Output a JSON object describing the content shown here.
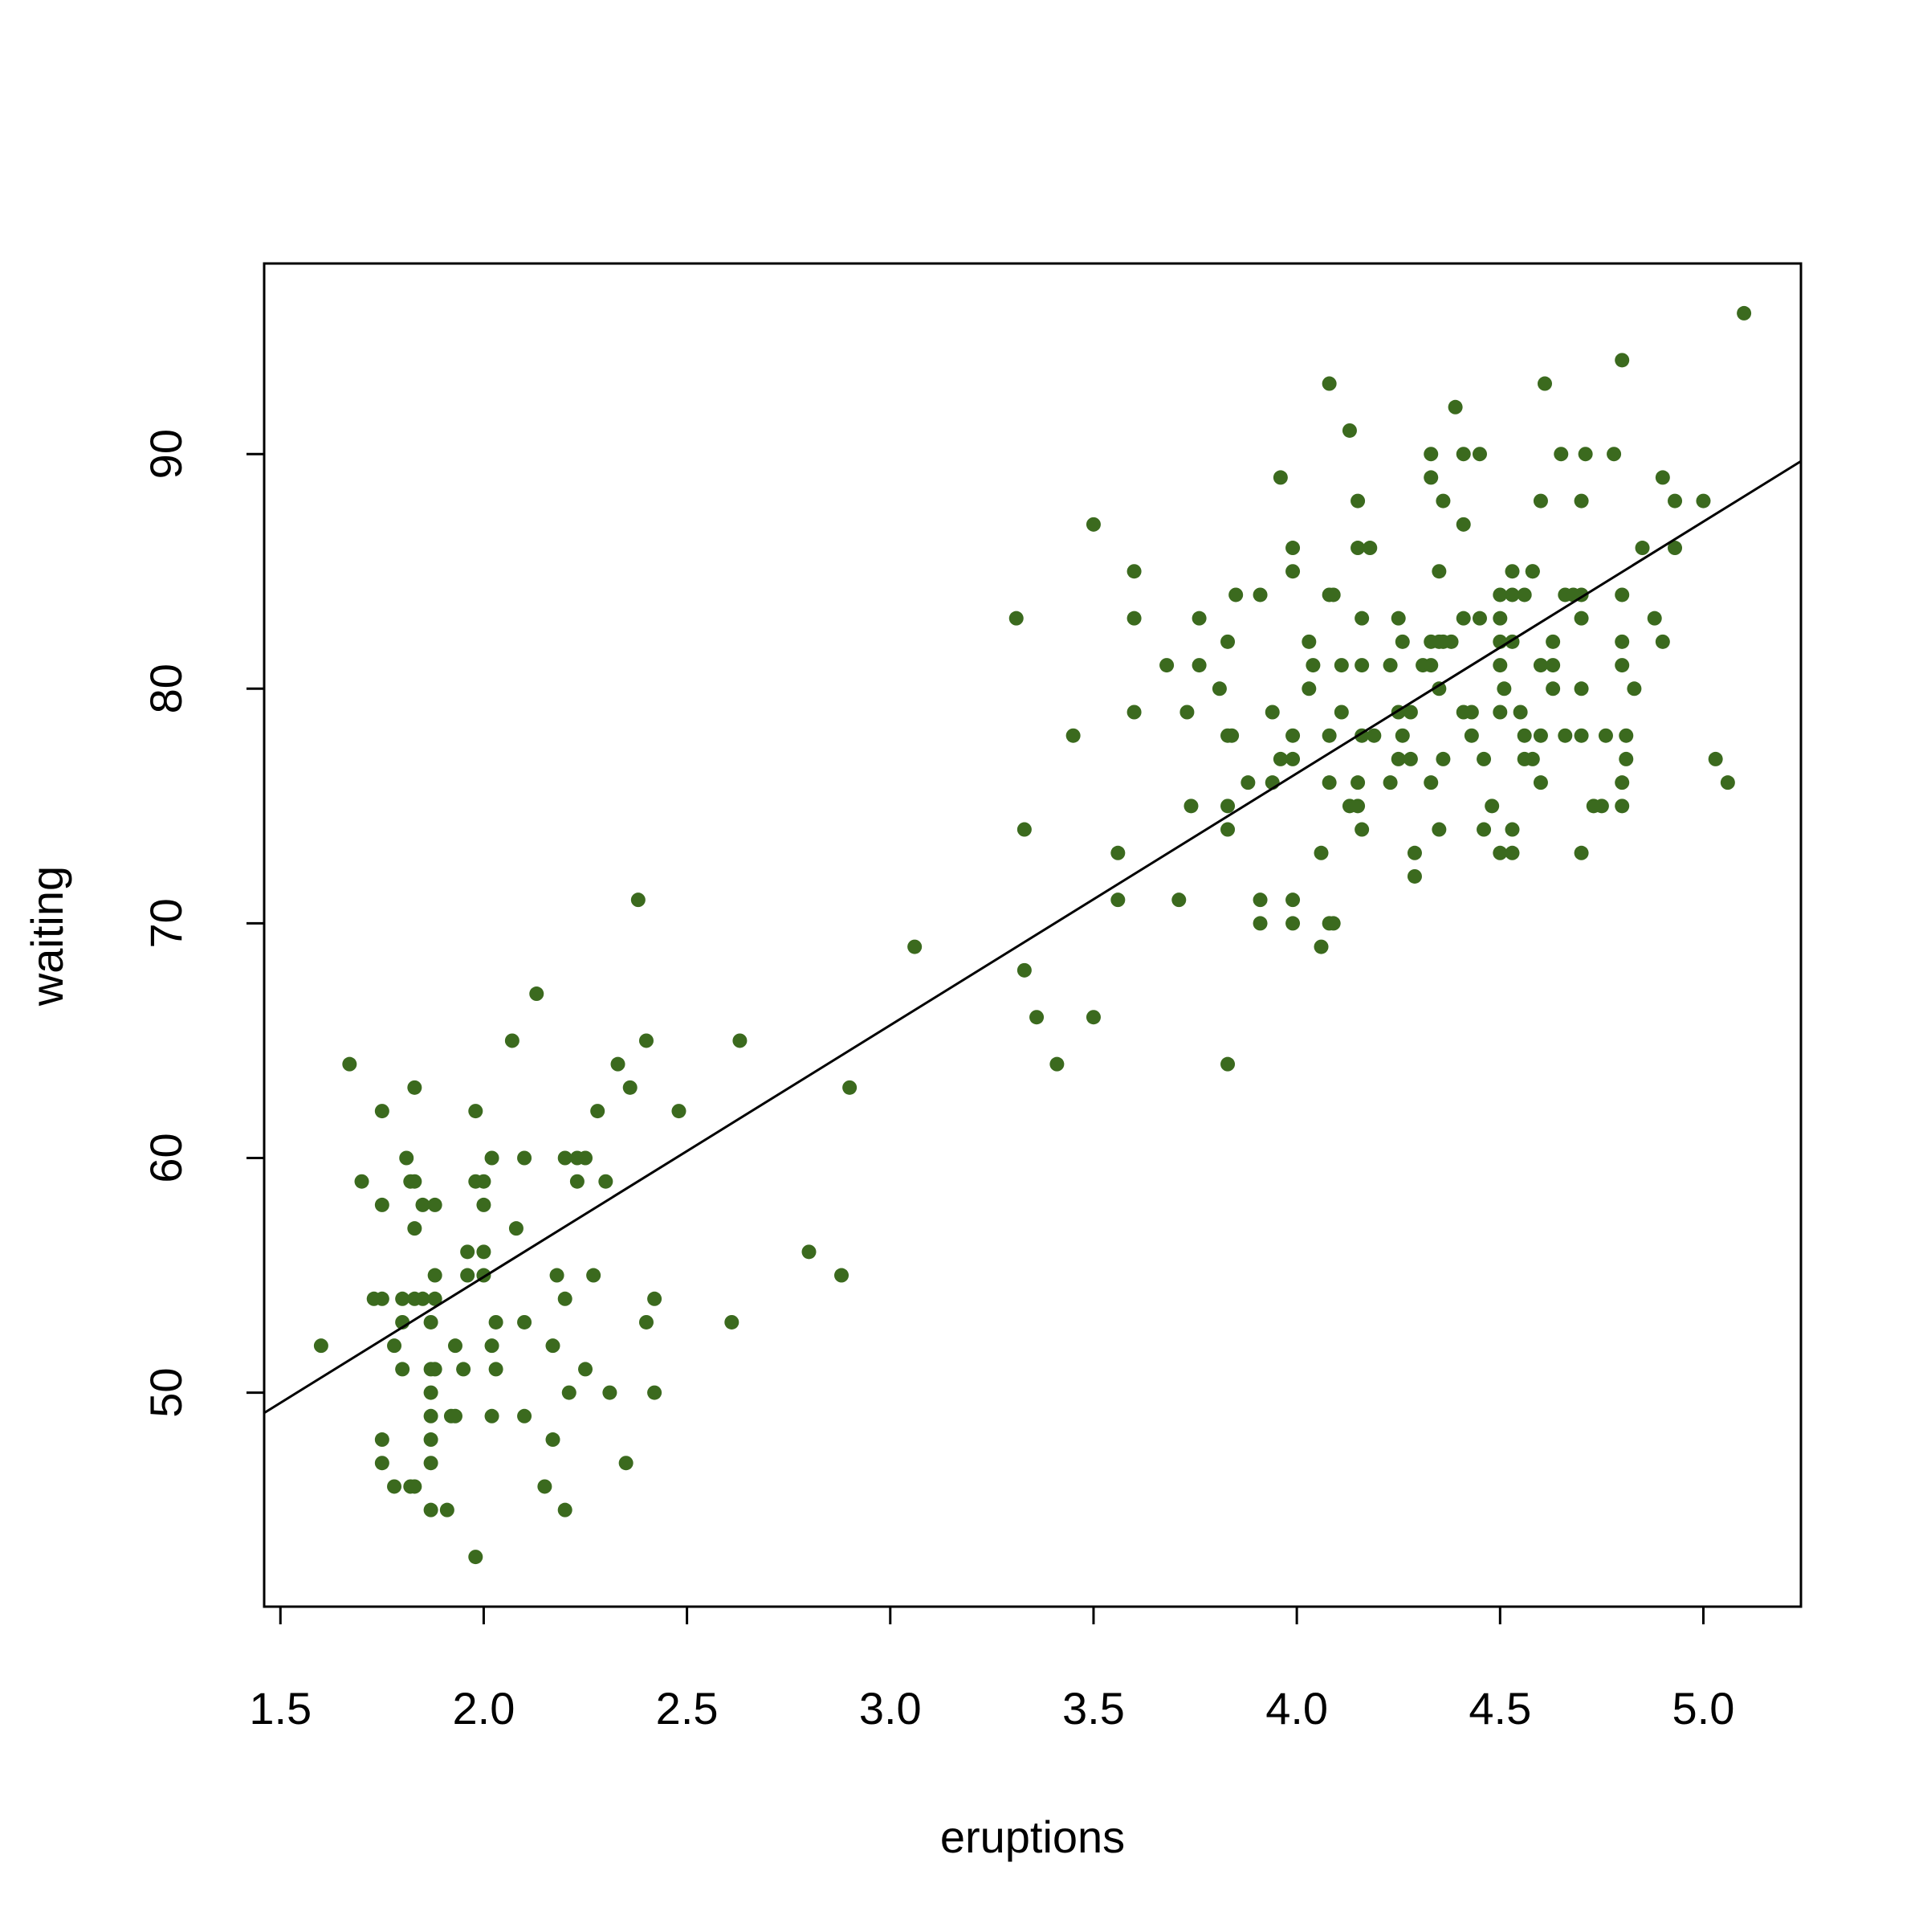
{
  "chart_data": {
    "type": "scatter",
    "x_label": "eruptions",
    "y_label": "waiting",
    "color": "#3b6a1e",
    "xlim": [
      1.46,
      5.24
    ],
    "ylim": [
      40.88,
      98.12
    ],
    "xticks": [
      1.5,
      {
        "value": 2,
        "label": "2.0"
      },
      2.5,
      {
        "value": 3,
        "label": "3.0"
      },
      3.5,
      {
        "value": 4,
        "label": "4.0"
      },
      4.5,
      {
        "value": 5,
        "label": "5.0"
      }
    ],
    "yticks": [
      50,
      60,
      70,
      80,
      90
    ],
    "trendline": {
      "intercept": 33.47,
      "slope": 10.73
    },
    "x": [
      1.6,
      1.67,
      1.7,
      1.73,
      1.75,
      1.75,
      1.75,
      1.75,
      1.75,
      1.78,
      1.78,
      1.8,
      1.8,
      1.8,
      1.81,
      1.82,
      1.82,
      1.83,
      1.83,
      1.83,
      1.83,
      1.83,
      1.85,
      1.85,
      1.87,
      1.87,
      1.87,
      1.87,
      1.87,
      1.87,
      1.87,
      1.88,
      1.88,
      1.88,
      1.88,
      1.91,
      1.92,
      1.93,
      1.93,
      1.95,
      1.96,
      1.96,
      1.98,
      1.98,
      1.98,
      2.0,
      2.0,
      2.0,
      2.0,
      2.02,
      2.02,
      2.02,
      2.03,
      2.03,
      2.07,
      2.08,
      2.1,
      2.1,
      2.1,
      2.13,
      2.15,
      2.17,
      2.17,
      2.18,
      2.2,
      2.2,
      2.2,
      2.21,
      2.23,
      2.25,
      2.23,
      2.25,
      2.27,
      2.28,
      2.3,
      2.31,
      2.33,
      2.35,
      2.36,
      2.38,
      2.4,
      2.4,
      2.42,
      2.42,
      2.48,
      2.61,
      2.63,
      2.8,
      2.88,
      2.9,
      3.06,
      3.31,
      3.33,
      3.33,
      3.36,
      3.41,
      3.45,
      3.5,
      3.5,
      3.56,
      3.56,
      3.6,
      3.6,
      3.6,
      3.68,
      3.71,
      3.73,
      3.74,
      3.76,
      3.76,
      3.81,
      3.83,
      3.83,
      3.84,
      3.83,
      3.83,
      3.83,
      3.85,
      3.88,
      3.91,
      3.91,
      3.91,
      3.94,
      3.94,
      3.96,
      3.96,
      3.99,
      3.99,
      3.99,
      3.99,
      3.99,
      3.99,
      4.03,
      4.03,
      4.04,
      4.06,
      4.06,
      4.08,
      4.08,
      4.09,
      4.08,
      4.08,
      4.08,
      4.09,
      4.11,
      4.11,
      4.13,
      4.13,
      4.15,
      4.15,
      4.15,
      4.15,
      4.16,
      4.16,
      4.16,
      4.16,
      4.18,
      4.19,
      4.23,
      4.23,
      4.25,
      4.25,
      4.25,
      4.26,
      4.26,
      4.28,
      4.28,
      4.29,
      4.29,
      4.31,
      4.33,
      4.33,
      4.33,
      4.33,
      4.35,
      4.36,
      4.38,
      4.33,
      4.35,
      4.35,
      4.35,
      4.36,
      4.36,
      4.39,
      4.41,
      4.41,
      4.41,
      4.41,
      4.43,
      4.43,
      4.45,
      4.45,
      4.46,
      4.46,
      4.48,
      4.5,
      4.5,
      4.5,
      4.5,
      4.5,
      4.5,
      4.51,
      4.53,
      4.53,
      4.53,
      4.53,
      4.53,
      4.55,
      4.56,
      4.56,
      4.56,
      4.58,
      4.58,
      4.6,
      4.58,
      4.6,
      4.6,
      4.6,
      4.61,
      4.63,
      4.63,
      4.63,
      4.65,
      4.66,
      4.68,
      4.66,
      4.7,
      4.7,
      4.7,
      4.7,
      4.7,
      4.7,
      4.71,
      4.73,
      4.75,
      4.76,
      4.78,
      4.8,
      4.8,
      4.8,
      4.8,
      4.8,
      4.8,
      4.81,
      4.81,
      4.83,
      4.85,
      4.88,
      4.9,
      4.9,
      4.93,
      4.93,
      5.0,
      5.03,
      5.06,
      5.1
    ],
    "values": [
      52,
      64,
      59,
      54,
      54,
      62,
      58,
      48,
      47,
      52,
      46,
      53,
      54,
      51,
      60,
      59,
      46,
      46,
      63,
      59,
      57,
      54,
      54,
      58,
      53,
      51,
      50,
      49,
      48,
      47,
      45,
      58,
      55,
      54,
      51,
      45,
      49,
      49,
      52,
      51,
      56,
      55,
      62,
      59,
      43,
      59,
      58,
      56,
      55,
      60,
      52,
      49,
      53,
      51,
      65,
      57,
      60,
      53,
      49,
      67,
      46,
      52,
      48,
      55,
      60,
      54,
      45,
      50,
      60,
      60,
      59,
      51,
      55,
      62,
      59,
      50,
      64,
      47,
      63,
      71,
      65,
      53,
      54,
      50,
      62,
      53,
      65,
      56,
      55,
      63,
      69,
      83,
      74,
      68,
      66,
      64,
      78,
      87,
      66,
      73,
      71,
      85,
      83,
      79,
      81,
      71,
      79,
      75,
      83,
      81,
      80,
      82,
      78,
      78,
      75,
      74,
      64,
      84,
      76,
      84,
      71,
      70,
      79,
      76,
      77,
      89,
      86,
      85,
      78,
      77,
      71,
      70,
      82,
      80,
      81,
      73,
      69,
      93,
      84,
      84,
      78,
      76,
      70,
      70,
      81,
      79,
      91,
      75,
      75,
      88,
      86,
      76,
      83,
      81,
      78,
      74,
      86,
      78,
      81,
      76,
      83,
      79,
      77,
      82,
      78,
      79,
      77,
      73,
      72,
      81,
      81,
      90,
      89,
      82,
      82,
      82,
      82,
      76,
      85,
      80,
      74,
      88,
      77,
      92,
      90,
      87,
      83,
      79,
      79,
      78,
      90,
      83,
      77,
      74,
      75,
      84,
      83,
      82,
      81,
      79,
      73,
      80,
      85,
      84,
      82,
      74,
      73,
      79,
      84,
      78,
      77,
      77,
      85,
      76,
      85,
      88,
      81,
      78,
      93,
      82,
      81,
      80,
      90,
      84,
      84,
      78,
      88,
      84,
      83,
      80,
      78,
      73,
      90,
      75,
      75,
      78,
      90,
      94,
      84,
      82,
      81,
      76,
      75,
      78,
      77,
      80,
      86,
      83,
      89,
      82,
      88,
      86,
      88,
      77,
      76,
      96
    ]
  }
}
